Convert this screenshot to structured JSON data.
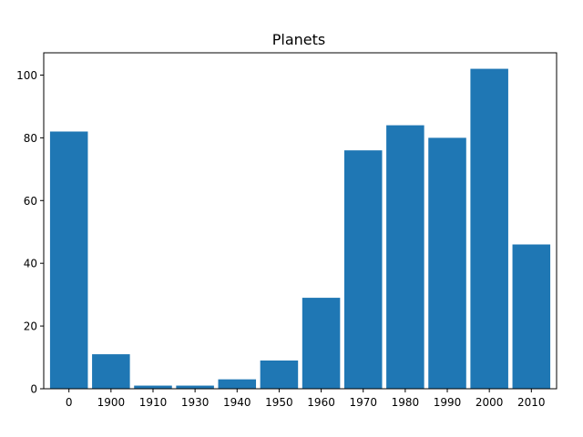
{
  "chart_data": {
    "type": "bar",
    "title": "Planets",
    "xlabel": "",
    "ylabel": "",
    "categories": [
      "0",
      "1900",
      "1910",
      "1930",
      "1940",
      "1950",
      "1960",
      "1970",
      "1980",
      "1990",
      "2000",
      "2010"
    ],
    "values": [
      82,
      11,
      1,
      1,
      3,
      9,
      29,
      76,
      84,
      80,
      102,
      46
    ],
    "yticks": [
      "0",
      "20",
      "40",
      "60",
      "80",
      "100"
    ],
    "ylim": [
      0,
      107.1
    ],
    "grid": false,
    "legend": "none",
    "bar_color": "#1f77b4"
  }
}
